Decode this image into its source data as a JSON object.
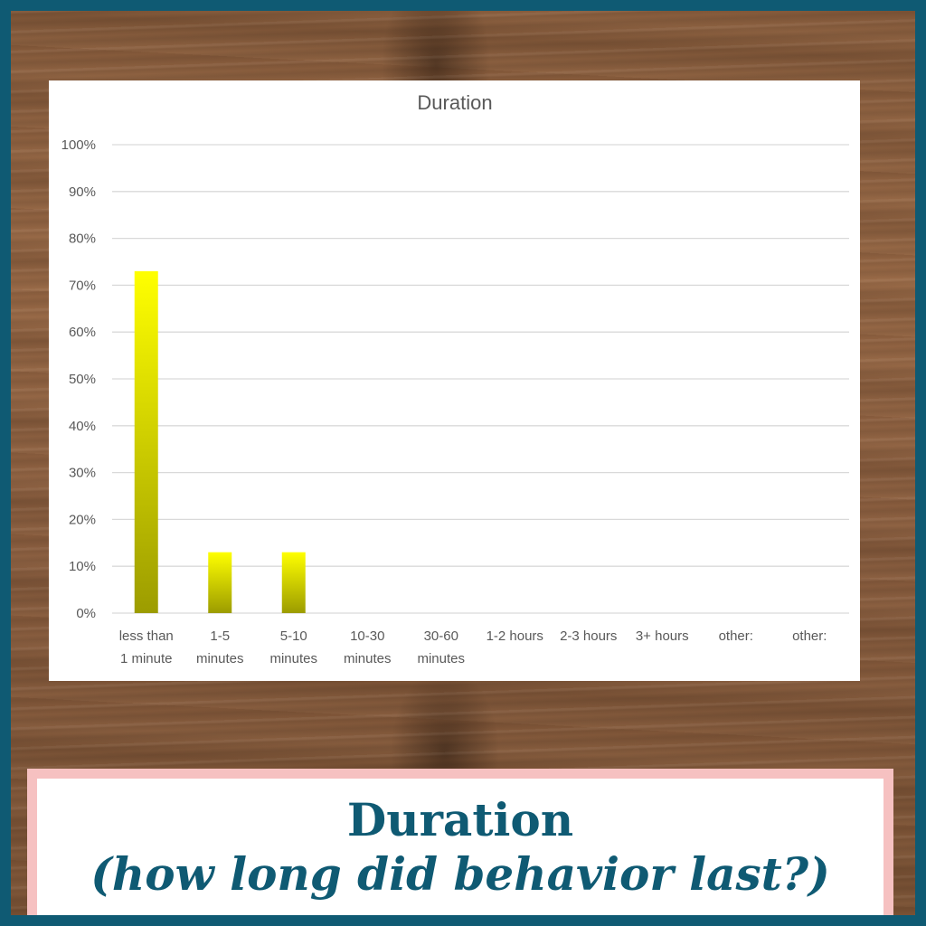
{
  "chart_data": {
    "type": "bar",
    "title": "Duration",
    "categories": [
      [
        "less than",
        "1 minute"
      ],
      [
        "1-5",
        "minutes"
      ],
      [
        "5-10",
        "minutes"
      ],
      [
        "10-30",
        "minutes"
      ],
      [
        "30-60",
        "minutes"
      ],
      [
        "1-2 hours"
      ],
      [
        "2-3 hours"
      ],
      [
        "3+ hours"
      ],
      [
        "other:"
      ],
      [
        "other:"
      ]
    ],
    "values": [
      73,
      13,
      13,
      0,
      0,
      0,
      0,
      0,
      0,
      0
    ],
    "ylim": [
      0,
      100
    ],
    "yticks": [
      "0%",
      "10%",
      "20%",
      "30%",
      "40%",
      "50%",
      "60%",
      "70%",
      "80%",
      "90%",
      "100%"
    ],
    "grid": true,
    "bar_color_top": "#ffff00",
    "bar_color_bottom": "#9c9c00"
  },
  "caption": {
    "line1": "Duration",
    "line2": "(how long did behavior last?)"
  },
  "colors": {
    "frame": "#0f5a73",
    "caption_text": "#0f5a73",
    "caption_border": "#f6c1c1"
  }
}
